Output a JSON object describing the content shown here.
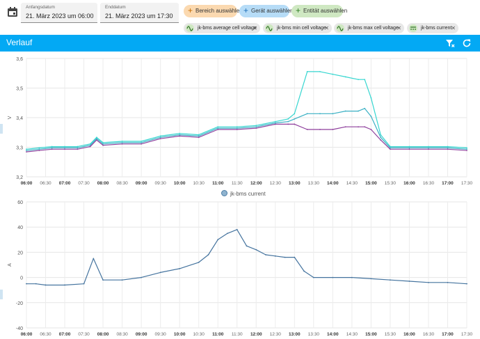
{
  "date_range": {
    "start_label": "Anfangsdatum",
    "start_value": "21. März 2023 um 06:00",
    "end_label": "Enddatum",
    "end_value": "21. März 2023 um 17:30"
  },
  "targets": {
    "area_button": "Bereich auswählen",
    "device_button": "Gerät auswählen",
    "entity_button": "Entität auswählen"
  },
  "entities": [
    {
      "label": "jk-bms average cell voltage",
      "icon": "sine-wave-icon"
    },
    {
      "label": "jk-bms min cell voltage",
      "icon": "sine-wave-icon"
    },
    {
      "label": "jk-bms max cell voltage",
      "icon": "sine-wave-icon"
    },
    {
      "label": "jk-bms current",
      "icon": "current-dc-icon"
    }
  ],
  "card": {
    "title": "Verlauf",
    "filter_icon": "filter-remove-icon",
    "refresh_icon": "refresh-icon"
  },
  "colors": {
    "header": "#03a9f4",
    "voltage_avg": "#3ab0c4",
    "voltage_min": "#8e3f9c",
    "voltage_max": "#36d6d0",
    "current": "#44739e"
  },
  "x_ticks": [
    "06:00",
    "06:30",
    "07:00",
    "07:30",
    "08:00",
    "08:30",
    "09:00",
    "09:30",
    "10:00",
    "10:30",
    "11:00",
    "11:30",
    "12:00",
    "12:30",
    "13:00",
    "13:30",
    "14:00",
    "14:30",
    "15:00",
    "15:30",
    "16:00",
    "16:30",
    "17:00",
    "17:30"
  ],
  "chart_data": [
    {
      "type": "line",
      "ylabel": "V",
      "ylim": [
        3.2,
        3.65
      ],
      "y_ticks": [
        "3,2",
        "3,3",
        "3,4",
        "3,5",
        "3,6"
      ],
      "x": [
        "06:00",
        "06:20",
        "06:40",
        "07:00",
        "07:20",
        "07:40",
        "07:50",
        "08:00",
        "08:30",
        "09:00",
        "09:30",
        "10:00",
        "10:30",
        "11:00",
        "11:30",
        "12:00",
        "12:30",
        "12:50",
        "13:00",
        "13:20",
        "13:40",
        "14:00",
        "14:20",
        "14:40",
        "14:50",
        "15:00",
        "15:15",
        "15:30",
        "16:00",
        "16:30",
        "17:00",
        "17:30"
      ],
      "series": [
        {
          "name": "jk-bms average cell voltage",
          "values": [
            3.3,
            3.305,
            3.31,
            3.31,
            3.31,
            3.32,
            3.345,
            3.325,
            3.33,
            3.33,
            3.35,
            3.36,
            3.355,
            3.385,
            3.385,
            3.39,
            3.405,
            3.41,
            3.42,
            3.44,
            3.44,
            3.44,
            3.45,
            3.45,
            3.46,
            3.43,
            3.35,
            3.31,
            3.31,
            3.31,
            3.31,
            3.305
          ]
        },
        {
          "name": "jk-bms min cell voltage",
          "values": [
            3.295,
            3.3,
            3.305,
            3.305,
            3.305,
            3.315,
            3.34,
            3.32,
            3.325,
            3.325,
            3.345,
            3.355,
            3.35,
            3.38,
            3.38,
            3.385,
            3.4,
            3.4,
            3.4,
            3.38,
            3.38,
            3.38,
            3.39,
            3.39,
            3.39,
            3.38,
            3.34,
            3.305,
            3.305,
            3.305,
            3.305,
            3.3
          ]
        },
        {
          "name": "jk-bms max cell voltage",
          "values": [
            3.305,
            3.31,
            3.315,
            3.315,
            3.315,
            3.325,
            3.35,
            3.33,
            3.335,
            3.335,
            3.355,
            3.365,
            3.36,
            3.39,
            3.39,
            3.395,
            3.41,
            3.42,
            3.44,
            3.6,
            3.6,
            3.59,
            3.58,
            3.57,
            3.57,
            3.5,
            3.36,
            3.315,
            3.315,
            3.315,
            3.315,
            3.31
          ]
        }
      ]
    },
    {
      "type": "line",
      "ylabel": "A",
      "ylim": [
        -40,
        60
      ],
      "y_ticks": [
        "-40",
        "-20",
        "0",
        "20",
        "40",
        "60"
      ],
      "legend": "jk-bms current",
      "x": [
        "06:00",
        "06:15",
        "06:30",
        "07:00",
        "07:30",
        "07:45",
        "08:00",
        "08:30",
        "09:00",
        "09:30",
        "10:00",
        "10:30",
        "10:45",
        "11:00",
        "11:15",
        "11:30",
        "11:45",
        "12:00",
        "12:15",
        "12:30",
        "12:45",
        "13:00",
        "13:15",
        "13:30",
        "14:00",
        "14:30",
        "15:00",
        "15:30",
        "16:00",
        "16:30",
        "17:00",
        "17:30"
      ],
      "series": [
        {
          "name": "jk-bms current",
          "values": [
            -5,
            -5,
            -6,
            -6,
            -5,
            15,
            -2,
            -2,
            0,
            4,
            7,
            12,
            18,
            30,
            35,
            38,
            25,
            22,
            18,
            17,
            16,
            16,
            5,
            0,
            0,
            0,
            -1,
            -2,
            -3,
            -4,
            -4,
            -5
          ]
        }
      ]
    }
  ]
}
